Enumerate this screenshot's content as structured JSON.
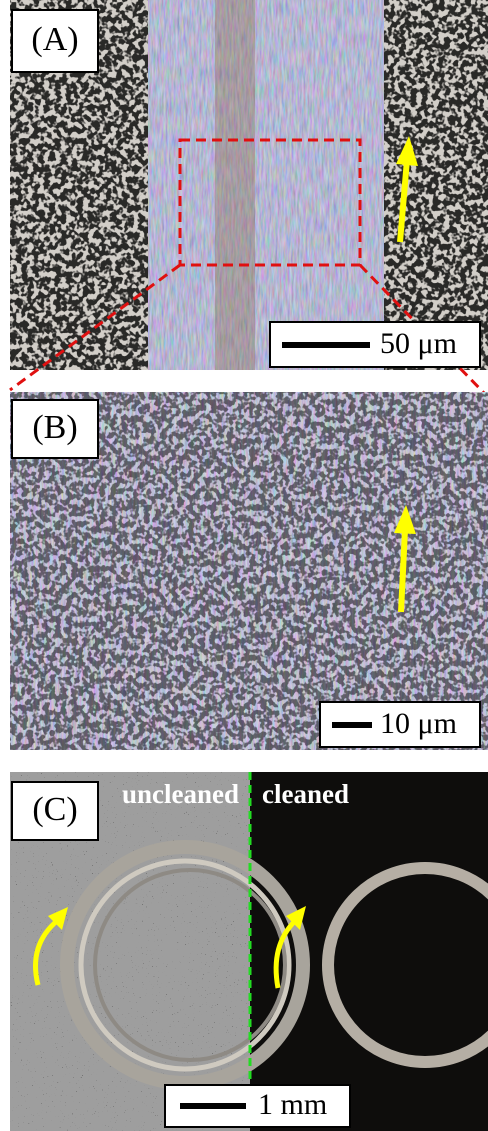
{
  "panels": [
    {
      "label": "(A)",
      "scale_bar": "50 μm"
    },
    {
      "label": "(B)",
      "scale_bar": "10 μm"
    },
    {
      "label": "(C)",
      "scale_bar": "1 mm",
      "annotations": [
        "uncleaned",
        "cleaned"
      ]
    }
  ]
}
